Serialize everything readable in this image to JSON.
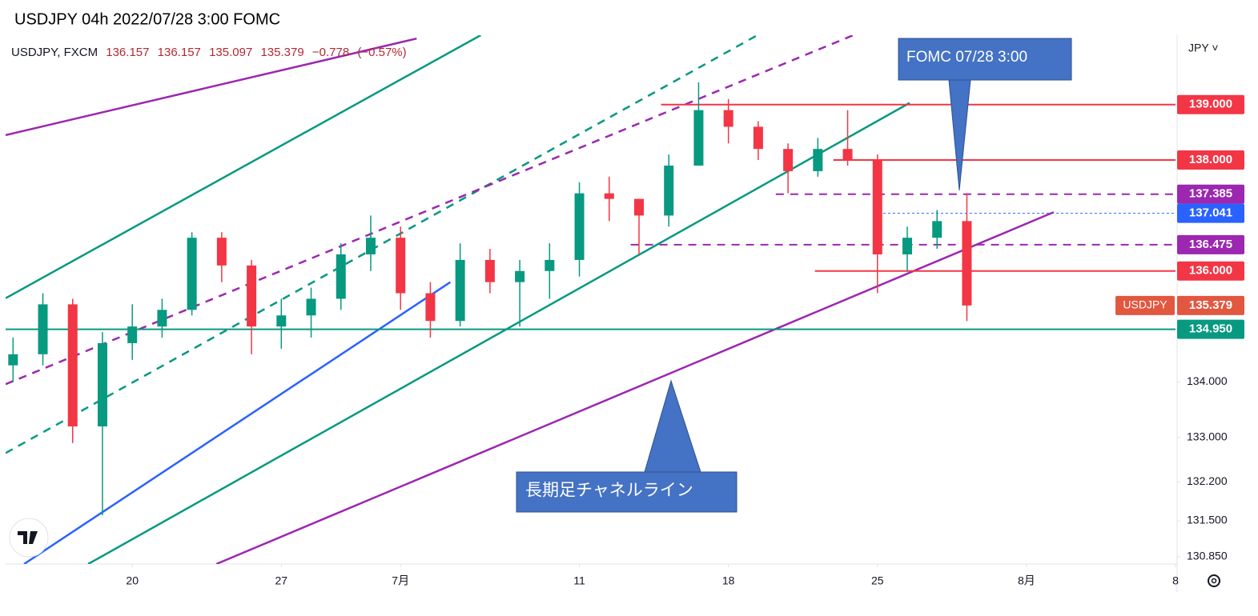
{
  "chart_data": {
    "type": "candlestick",
    "title": "USDJPY 04h 2022/07/28 3:00 FOMC",
    "legend": {
      "symbol": "USDJPY, FXCM",
      "open": 136.157,
      "high": 136.157,
      "low": 135.097,
      "close": 135.379,
      "change": {
        "value": -0.778,
        "label": "−0.778"
      },
      "change_pct": {
        "value": -0.57,
        "label": "(−0.57%)"
      }
    },
    "currency": "JPY ˅",
    "x": [
      -4,
      -3,
      -2,
      -1,
      0,
      1,
      2,
      3,
      4,
      5,
      6,
      7,
      8,
      9,
      10,
      11,
      12,
      13,
      14,
      15,
      16,
      17,
      18,
      19,
      20,
      21,
      22,
      23,
      24,
      25,
      26,
      27,
      28
    ],
    "open": [
      134.3,
      134.5,
      135.4,
      133.2,
      134.7,
      135.0,
      135.3,
      136.6,
      136.1,
      135.0,
      135.2,
      135.5,
      136.3,
      136.6,
      135.6,
      135.1,
      136.2,
      135.8,
      136.0,
      136.2,
      137.4,
      137.3,
      137.0,
      137.9,
      138.9,
      138.6,
      138.2,
      137.8,
      138.2,
      138.0,
      136.3,
      136.6,
      136.9
    ],
    "high": [
      134.8,
      135.6,
      135.5,
      134.9,
      135.4,
      135.5,
      136.7,
      136.7,
      136.2,
      135.5,
      135.7,
      136.5,
      137.0,
      136.8,
      135.8,
      136.5,
      136.4,
      136.2,
      136.5,
      137.6,
      137.7,
      137.3,
      138.1,
      139.4,
      139.1,
      138.7,
      138.3,
      138.4,
      138.9,
      138.1,
      136.8,
      137.1,
      137.4
    ],
    "low": [
      134.0,
      134.3,
      132.9,
      131.6,
      134.4,
      134.8,
      135.2,
      135.8,
      134.5,
      134.6,
      134.8,
      135.3,
      136.0,
      135.3,
      134.8,
      135.0,
      135.6,
      135.0,
      135.5,
      135.9,
      136.9,
      136.3,
      136.8,
      137.9,
      138.3,
      138.0,
      137.4,
      137.7,
      137.9,
      135.6,
      136.0,
      136.4,
      135.1
    ],
    "close": [
      134.5,
      135.4,
      133.2,
      134.7,
      135.0,
      135.3,
      136.6,
      136.1,
      135.0,
      135.2,
      135.5,
      136.3,
      136.6,
      135.6,
      135.1,
      136.2,
      135.8,
      136.0,
      136.2,
      137.4,
      137.3,
      137.0,
      137.9,
      138.9,
      138.6,
      138.2,
      137.8,
      138.2,
      138.0,
      136.3,
      136.6,
      136.9,
      135.379
    ],
    "up_color": "#089981",
    "down_color": "#f23645",
    "xlim": [
      -4.25,
      35
    ],
    "xticks": [
      {
        "value": 0,
        "label": "20"
      },
      {
        "value": 5,
        "label": "27"
      },
      {
        "value": 9,
        "label": "7月"
      },
      {
        "value": 15,
        "label": "11"
      },
      {
        "value": 20,
        "label": "18"
      },
      {
        "value": 25,
        "label": "25"
      },
      {
        "value": 30,
        "label": "8月"
      },
      {
        "value": 35,
        "label": "8"
      }
    ],
    "ylim": [
      130.72,
      140.25
    ],
    "yticks": [
      {
        "value": 134,
        "label": "134.000"
      },
      {
        "value": 133,
        "label": "133.000"
      },
      {
        "value": 132.2,
        "label": "132.200"
      },
      {
        "value": 131.5,
        "label": "131.500"
      },
      {
        "value": 130.85,
        "label": "130.850"
      }
    ],
    "levels": [
      {
        "value": 139,
        "label": "139.000",
        "color": "#f23645",
        "dash": false,
        "x_start": 17.74
      },
      {
        "value": 138,
        "label": "138.000",
        "color": "#f23645",
        "dash": false,
        "x_start": 23.52
      },
      {
        "value": 137.385,
        "label": "137.385",
        "color": "#9c27b0",
        "dash": true,
        "x_start": 21.59
      },
      {
        "value": 137.041,
        "label": "137.041",
        "color": "#2962ff",
        "dash": true,
        "x_start": 24.87
      },
      {
        "value": 136.475,
        "label": "136.475",
        "color": "#9c27b0",
        "dash": true,
        "x_start": 16.72
      },
      {
        "value": 136,
        "label": "136.000",
        "color": "#f23645",
        "dash": false,
        "x_start": 22.9
      },
      {
        "value": 134.95,
        "label": "134.950",
        "color": "#089981",
        "dash": false,
        "x_start": -4.25
      }
    ],
    "current": {
      "value": 135.379,
      "label": "135.379",
      "tag": "USDJPY",
      "color": "#e2573f"
    },
    "drawings": [
      {
        "color": "#9c27b0",
        "dash": false,
        "x": [
          -4.25,
          9.54
        ],
        "y": [
          138.45,
          140.19
        ]
      },
      {
        "color": "#089981",
        "dash": false,
        "x": [
          -4.25,
          11.69
        ],
        "y": [
          135.51,
          140.25
        ]
      },
      {
        "color": "#089981",
        "dash": true,
        "x": [
          -4.25,
          20.97
        ],
        "y": [
          132.72,
          140.25
        ]
      },
      {
        "color": "#9c27b0",
        "dash": true,
        "x": [
          -4.25,
          24.19
        ],
        "y": [
          133.96,
          140.25
        ]
      },
      {
        "color": "#089981",
        "dash": false,
        "x": [
          -1.48,
          26.08
        ],
        "y": [
          130.72,
          139.03
        ]
      },
      {
        "color": "#2962ff",
        "dash": false,
        "x": [
          -3.63,
          10.67
        ],
        "y": [
          130.72,
          135.8
        ]
      },
      {
        "color": "#9c27b0",
        "dash": false,
        "x": [
          2.82,
          30.91
        ],
        "y": [
          130.72,
          137.06
        ]
      }
    ],
    "annotations": [
      "FOMC 07/28 3:00",
      "長期足チャネルライン"
    ]
  }
}
